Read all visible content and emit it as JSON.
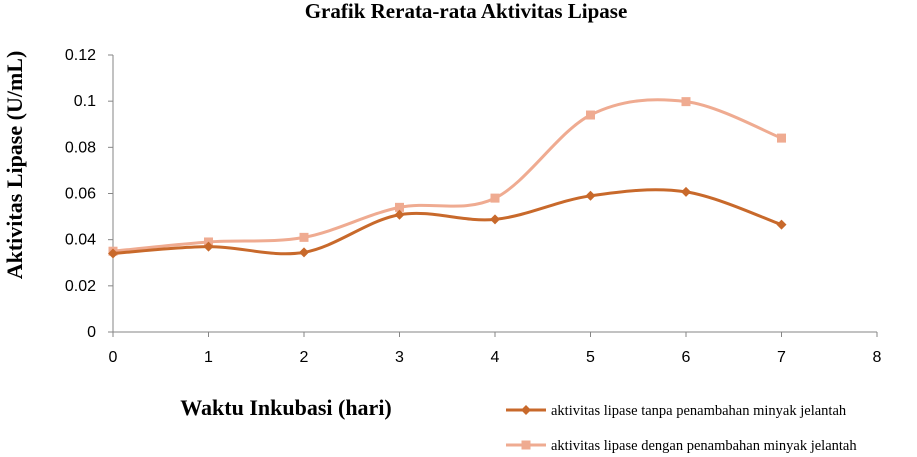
{
  "chart_data": {
    "type": "line",
    "title": "Grafik Rerata-rata  Aktivitas Lipase",
    "xlabel": "Waktu  Inkubasi (hari)",
    "ylabel": "Aktivitas Lipase (U/mL)",
    "xlim": [
      0,
      8
    ],
    "ylim": [
      0,
      0.12
    ],
    "x_ticks": [
      "0",
      "1",
      "2",
      "3",
      "4",
      "5",
      "6",
      "7",
      "8"
    ],
    "y_ticks": [
      "0",
      "0.02",
      "0.04",
      "0.06",
      "0.08",
      "0.1",
      "0.12"
    ],
    "grid": false,
    "smooth": true,
    "legend_position": "bottom-right",
    "series": [
      {
        "name": "aktivitas lipase tanpa penambahan minyak jelantah",
        "marker": "diamond",
        "color": "#c8692b",
        "x": [
          0,
          1,
          2,
          3,
          4,
          5,
          6,
          7
        ],
        "y": [
          0.034,
          0.037,
          0.0345,
          0.0508,
          0.0488,
          0.059,
          0.0607,
          0.0465
        ]
      },
      {
        "name": "aktivitas lipase dengan penambahan minyak jelantah",
        "marker": "square",
        "color": "#efab91",
        "x": [
          0,
          1,
          2,
          3,
          4,
          5,
          6,
          7
        ],
        "y": [
          0.035,
          0.039,
          0.041,
          0.054,
          0.058,
          0.094,
          0.0998,
          0.084
        ]
      }
    ]
  }
}
